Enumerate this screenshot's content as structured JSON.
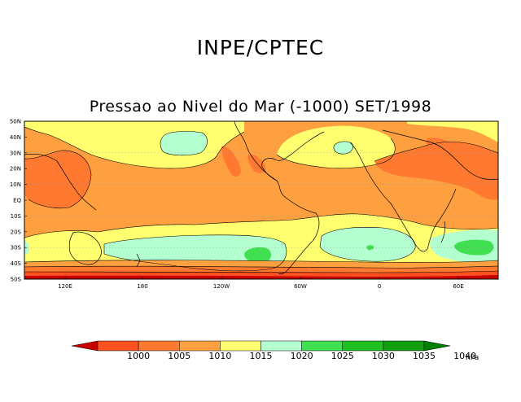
{
  "header": {
    "agency": "INPE/CPTEC",
    "subtitle": "Pressao ao Nivel do Mar (-1000) SET/1998"
  },
  "map": {
    "lat_labels": [
      "50N",
      "40N",
      "30N",
      "20N",
      "10N",
      "EQ",
      "10S",
      "20S",
      "30S",
      "40S",
      "50S"
    ],
    "lon_labels": [
      "120E",
      "180",
      "120W",
      "60W",
      "0",
      "60E"
    ]
  },
  "colorbar": {
    "unit": "hPa",
    "labels": [
      "1000",
      "1005",
      "1010",
      "1015",
      "1020",
      "1025",
      "1030",
      "1035",
      "1040"
    ],
    "colors": [
      "#c80000",
      "#ff5020",
      "#ff7a30",
      "#ffa040",
      "#ffff70",
      "#b4ffd0",
      "#40e050",
      "#20c020",
      "#10a010",
      "#008000"
    ]
  },
  "colors": {
    "below_1000": "#c80000",
    "c1000": "#ff5020",
    "c1005": "#ff7a30",
    "c1010": "#ffa040",
    "c1015": "#ffff70",
    "c1020": "#b4ffd0",
    "c1025": "#40e050",
    "c1030": "#20c020"
  }
}
